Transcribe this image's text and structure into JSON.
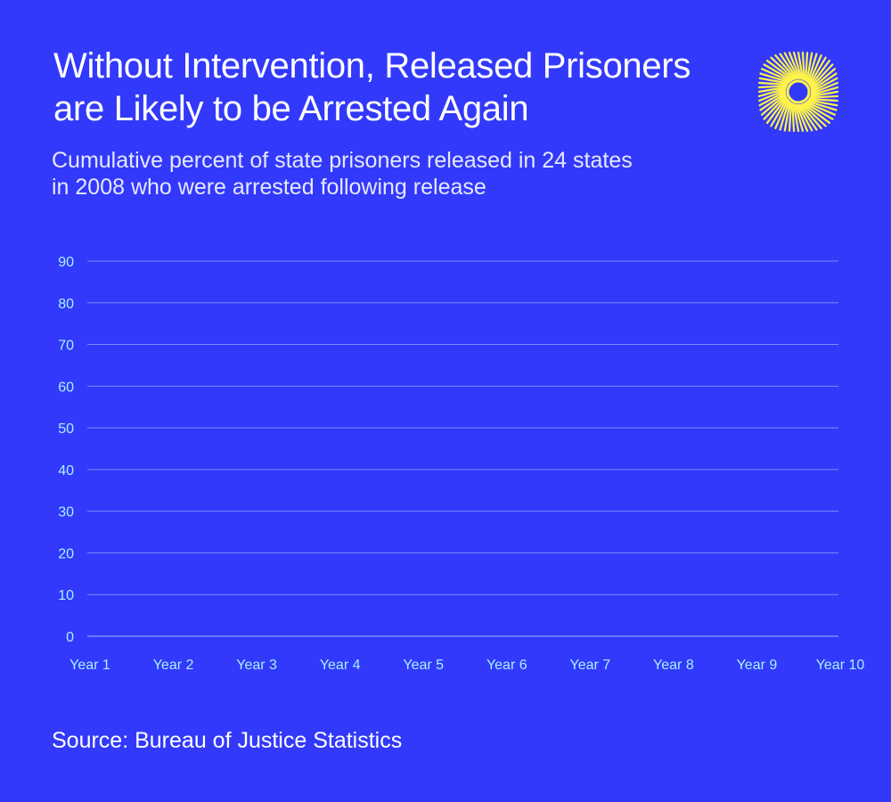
{
  "header": {
    "title_line1": "Without Intervention, Released Prisoners",
    "title_line2": "are Likely to be Arrested Again",
    "subtitle_line1": "Cumulative percent of state prisoners released in 24 states",
    "subtitle_line2": "in 2008 who were arrested following release"
  },
  "footer": {
    "source": "Source: Bureau of Justice Statistics"
  },
  "logo": {
    "icon": "sunburst-logo-icon",
    "color": "#fff34a"
  },
  "colors": {
    "background": "#3239fb",
    "gridline": "#7b8bff",
    "tick_label": "#a8f0ff",
    "text": "#ffffff"
  },
  "chart_data": {
    "type": "line",
    "title": "Without Intervention, Released Prisoners are Likely to be Arrested Again",
    "subtitle": "Cumulative percent of state prisoners released in 24 states in 2008 who were arrested following release",
    "categories": [
      "Year 1",
      "Year 2",
      "Year 3",
      "Year 4",
      "Year 5",
      "Year 6",
      "Year 7",
      "Year 8",
      "Year 9",
      "Year 10"
    ],
    "series": [],
    "ylim": [
      0,
      90
    ],
    "yticks": [
      0,
      10,
      20,
      30,
      40,
      50,
      60,
      70,
      80,
      90
    ],
    "xlabel": "",
    "ylabel": "",
    "grid": true,
    "source": "Source: Bureau of Justice Statistics"
  }
}
